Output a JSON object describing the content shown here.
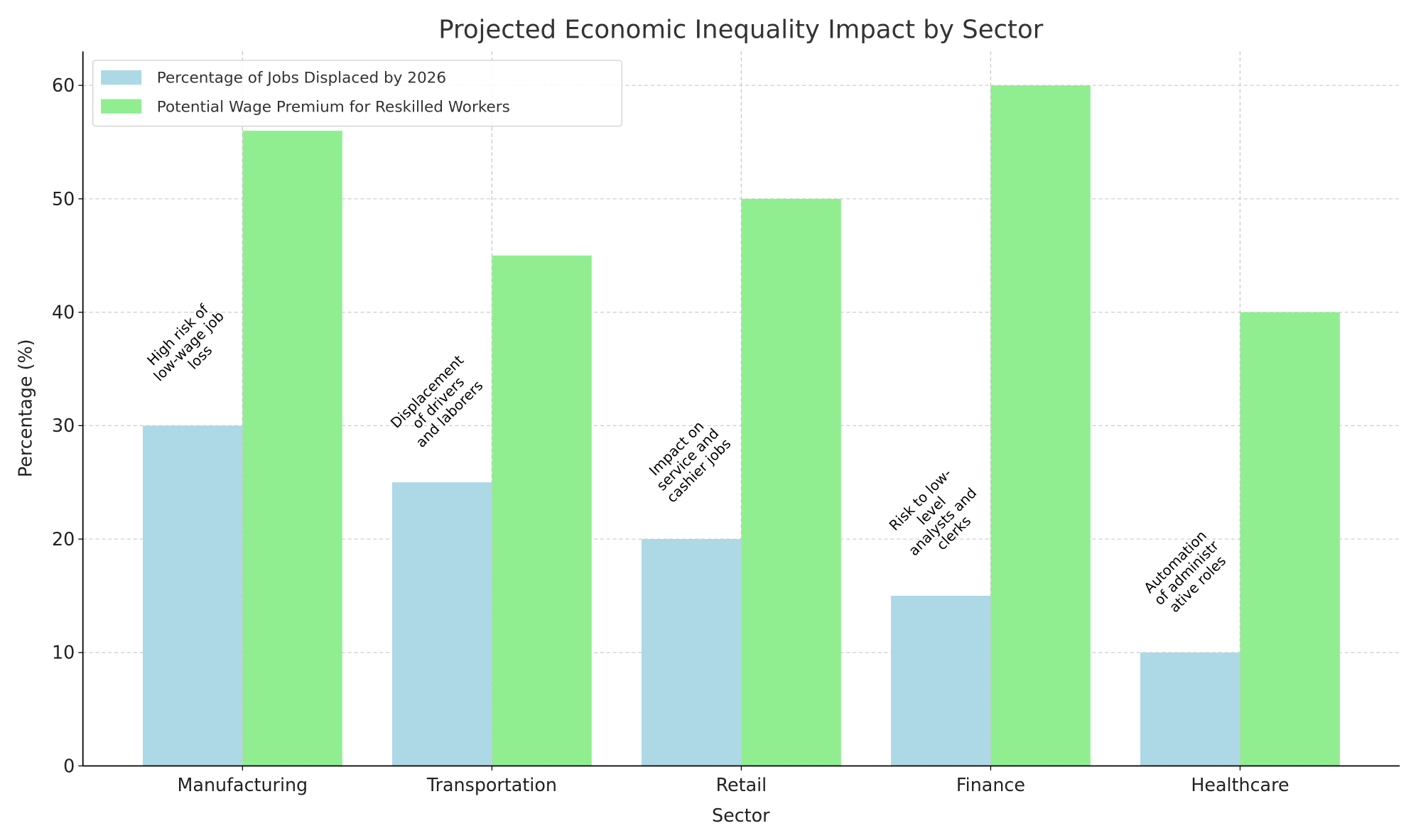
{
  "chart_data": {
    "type": "bar",
    "title": "Projected Economic Inequality Impact by Sector",
    "xlabel": "Sector",
    "ylabel": "Percentage (%)",
    "categories": [
      "Manufacturing",
      "Transportation",
      "Retail",
      "Finance",
      "Healthcare"
    ],
    "series": [
      {
        "name": "Percentage of Jobs Displaced by 2026",
        "color": "#ADD8E6",
        "values": [
          30,
          25,
          20,
          15,
          10
        ]
      },
      {
        "name": "Potential Wage Premium for Reskilled Workers",
        "color": "#90EE90",
        "values": [
          56,
          45,
          50,
          60,
          40
        ]
      }
    ],
    "annotations": [
      [
        "High risk of",
        "low-wage job",
        "loss"
      ],
      [
        "Displacement",
        "of drivers",
        "and laborers"
      ],
      [
        "Impact on",
        "service and",
        "cashier jobs"
      ],
      [
        "Risk to low-",
        "level",
        "analysts and",
        "clerks"
      ],
      [
        "Automation",
        "of administr",
        "ative roles"
      ]
    ],
    "yticks": [
      0,
      10,
      20,
      30,
      40,
      50,
      60
    ],
    "ylim": [
      0,
      63
    ],
    "grid": true,
    "legend_position": "top-left"
  }
}
